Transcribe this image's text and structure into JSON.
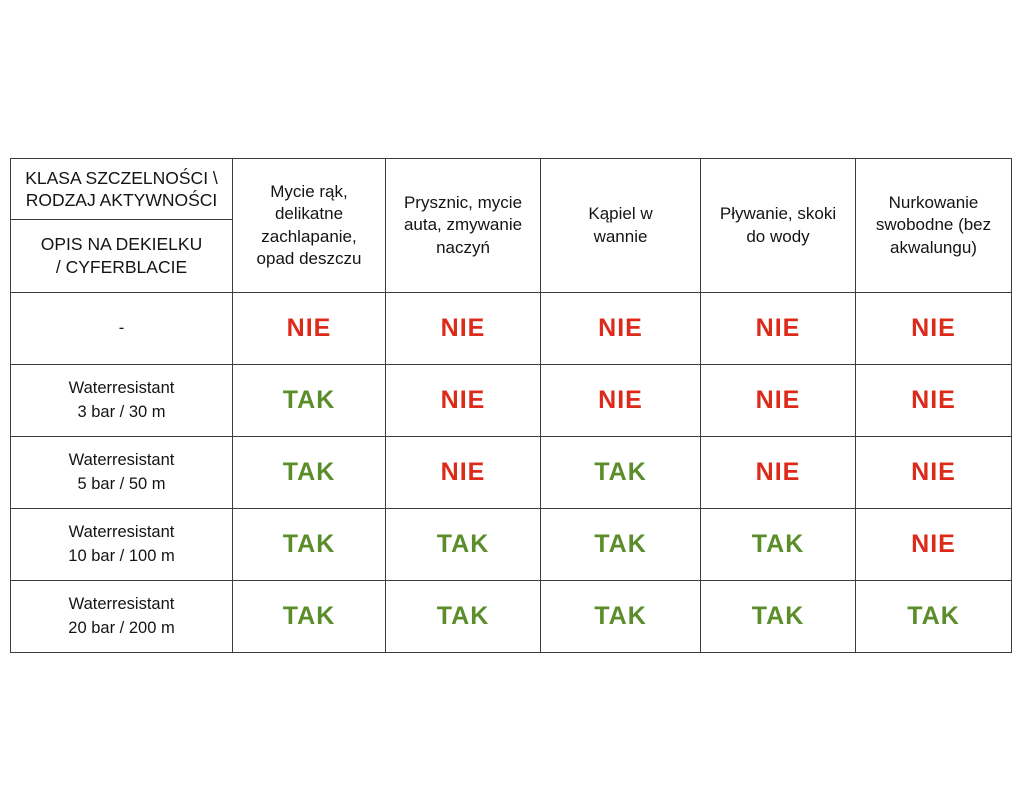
{
  "table": {
    "corner": {
      "top": "KLASA SZCZELNOŚCI \\\nRODZAJ AKTYWNOŚCI",
      "bottom": "OPIS NA DEKIELKU\n/ CYFERBLACIE"
    },
    "columns": [
      "Mycie rąk,\ndelikatne\nzachlapanie,\nopad deszczu",
      "Prysznic, mycie\nauta, zmywanie\nnaczyń",
      "Kąpiel w\nwannie",
      "Pływanie, skoki\ndo wody",
      "Nurkowanie\nswobodne (bez\nakwalungu)"
    ],
    "rows": [
      {
        "label": "-",
        "values": [
          "NIE",
          "NIE",
          "NIE",
          "NIE",
          "NIE"
        ]
      },
      {
        "label": "Waterresistant\n3 bar / 30 m",
        "values": [
          "TAK",
          "NIE",
          "NIE",
          "NIE",
          "NIE"
        ]
      },
      {
        "label": "Waterresistant\n5 bar / 50 m",
        "values": [
          "TAK",
          "NIE",
          "TAK",
          "NIE",
          "NIE"
        ]
      },
      {
        "label": "Waterresistant\n10 bar / 100 m",
        "values": [
          "TAK",
          "TAK",
          "TAK",
          "TAK",
          "NIE"
        ]
      },
      {
        "label": "Waterresistant\n20 bar / 200 m",
        "values": [
          "TAK",
          "TAK",
          "TAK",
          "TAK",
          "TAK"
        ]
      }
    ]
  },
  "colors": {
    "yes": "#5b8e2b",
    "no": "#dc2b1a",
    "yes_label": "TAK",
    "no_label": "NIE"
  }
}
